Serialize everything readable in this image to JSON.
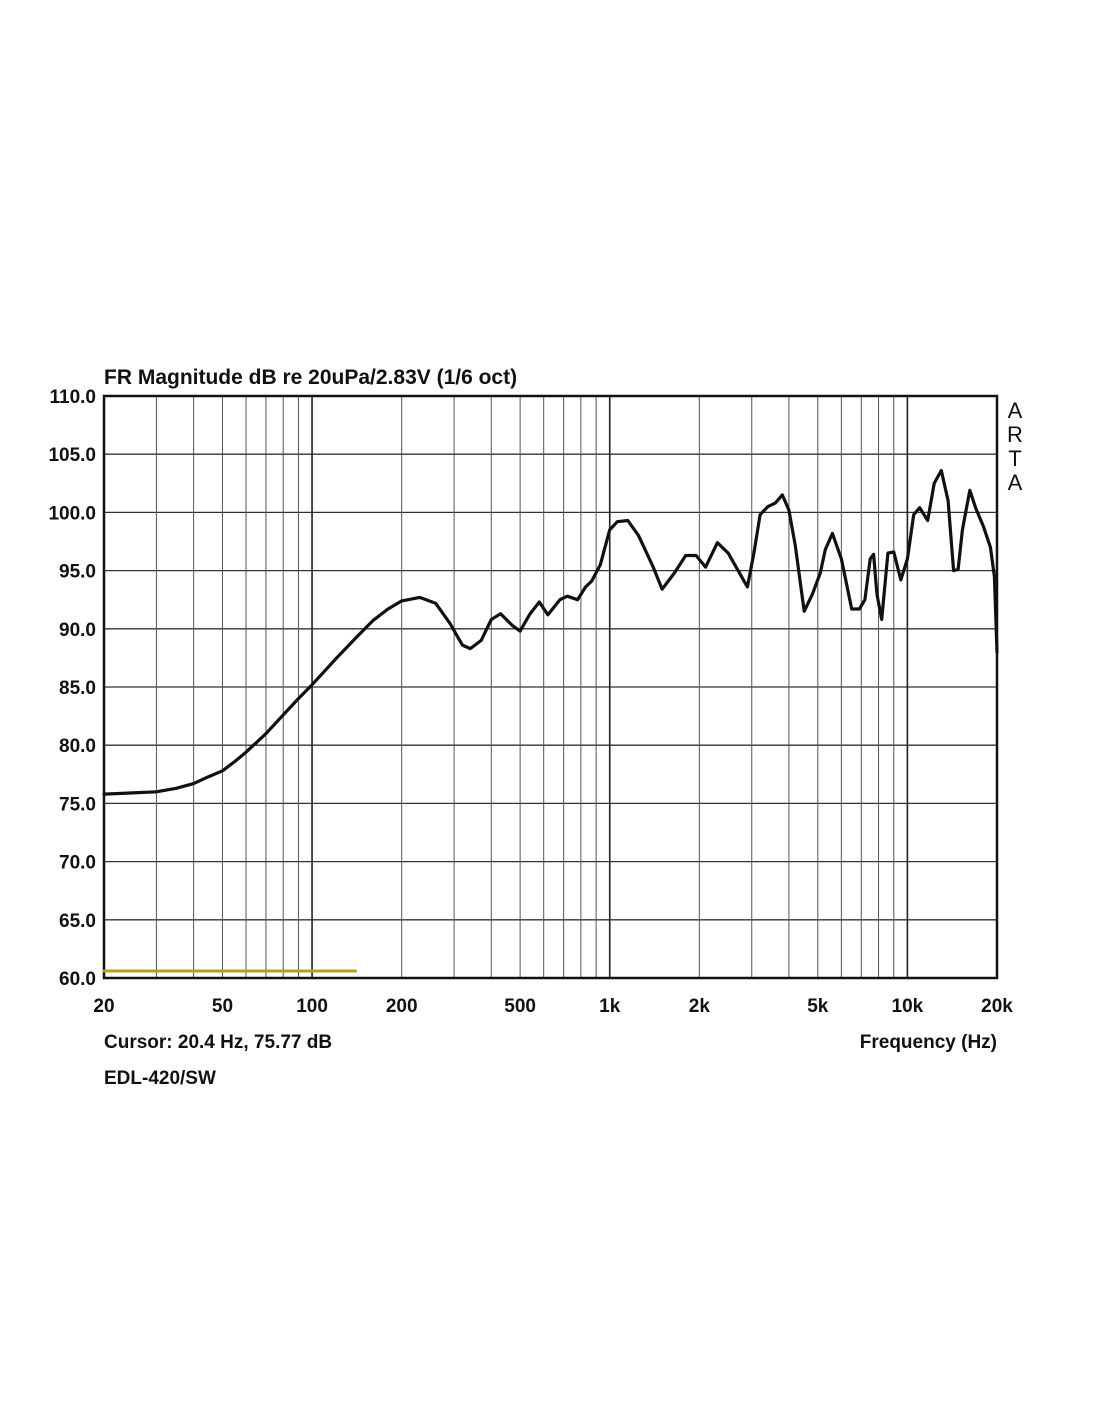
{
  "chart_data": {
    "type": "line",
    "title": "FR Magnitude dB re 20uPa/2.83V (1/6 oct)",
    "xlabel": "Frequency (Hz)",
    "ylabel": "",
    "xscale": "log",
    "xlim": [
      20,
      20000
    ],
    "ylim": [
      60,
      110
    ],
    "grid": true,
    "x_tick_labels": [
      "20",
      "50",
      "100",
      "200",
      "500",
      "1k",
      "2k",
      "5k",
      "10k",
      "20k"
    ],
    "x_tick_values": [
      20,
      50,
      100,
      200,
      500,
      1000,
      2000,
      5000,
      10000,
      20000
    ],
    "y_tick_labels": [
      "110.0",
      "105.0",
      "100.0",
      "95.0",
      "90.0",
      "85.0",
      "80.0",
      "75.0",
      "70.0",
      "65.0",
      "60.0"
    ],
    "y_tick_values": [
      110,
      105,
      100,
      95,
      90,
      85,
      80,
      75,
      70,
      65,
      60
    ],
    "cursor_readout": "Cursor: 20.4 Hz, 75.77 dB",
    "device_label": "EDL-420/SW",
    "brand_label": [
      "A",
      "R",
      "T",
      "A"
    ],
    "series": [
      {
        "color": "#111111",
        "x": [
          20,
          25,
          30,
          35,
          40,
          45,
          50,
          55,
          60,
          70,
          80,
          90,
          100,
          120,
          140,
          160,
          180,
          200,
          230,
          260,
          290,
          320,
          340,
          370,
          400,
          430,
          470,
          500,
          540,
          580,
          620,
          680,
          720,
          780,
          830,
          870,
          930,
          1000,
          1060,
          1150,
          1250,
          1400,
          1500,
          1650,
          1800,
          1950,
          2100,
          2300,
          2500,
          2700,
          2900,
          3050,
          3200,
          3400,
          3600,
          3800,
          4000,
          4200,
          4500,
          4800,
          5100,
          5300,
          5600,
          6000,
          6500,
          6900,
          7200,
          7500,
          7700,
          7900,
          8200,
          8600,
          9000,
          9500,
          10000,
          10500,
          11000,
          11700,
          12300,
          13000,
          13700,
          14300,
          14800,
          15300,
          16200,
          17000,
          18000,
          19000,
          19600,
          20000
        ],
        "values": [
          75.8,
          75.9,
          76.0,
          76.3,
          76.7,
          77.3,
          77.8,
          78.6,
          79.4,
          81.0,
          82.6,
          84.0,
          85.2,
          87.4,
          89.2,
          90.7,
          91.7,
          92.4,
          92.7,
          92.2,
          90.5,
          88.6,
          88.3,
          89.0,
          90.8,
          91.3,
          90.3,
          89.8,
          91.3,
          92.3,
          91.2,
          92.5,
          92.8,
          92.5,
          93.6,
          94.1,
          95.5,
          98.5,
          99.2,
          99.3,
          98.0,
          95.3,
          93.4,
          94.8,
          96.3,
          96.3,
          95.3,
          97.4,
          96.5,
          95.0,
          93.6,
          96.5,
          99.8,
          100.5,
          100.8,
          101.5,
          100.2,
          97.2,
          91.5,
          93.0,
          94.8,
          96.8,
          98.2,
          96.0,
          91.7,
          91.7,
          92.5,
          96.0,
          96.4,
          93.0,
          90.8,
          96.5,
          96.6,
          94.2,
          96.0,
          99.8,
          100.4,
          99.3,
          102.5,
          103.6,
          101.0,
          95.0,
          95.1,
          98.5,
          101.9,
          100.3,
          98.8,
          97.0,
          94.5,
          88.0
        ]
      },
      {
        "color": "#b5a020",
        "x": [
          20,
          140
        ],
        "values": [
          60.6,
          60.6
        ]
      }
    ]
  }
}
